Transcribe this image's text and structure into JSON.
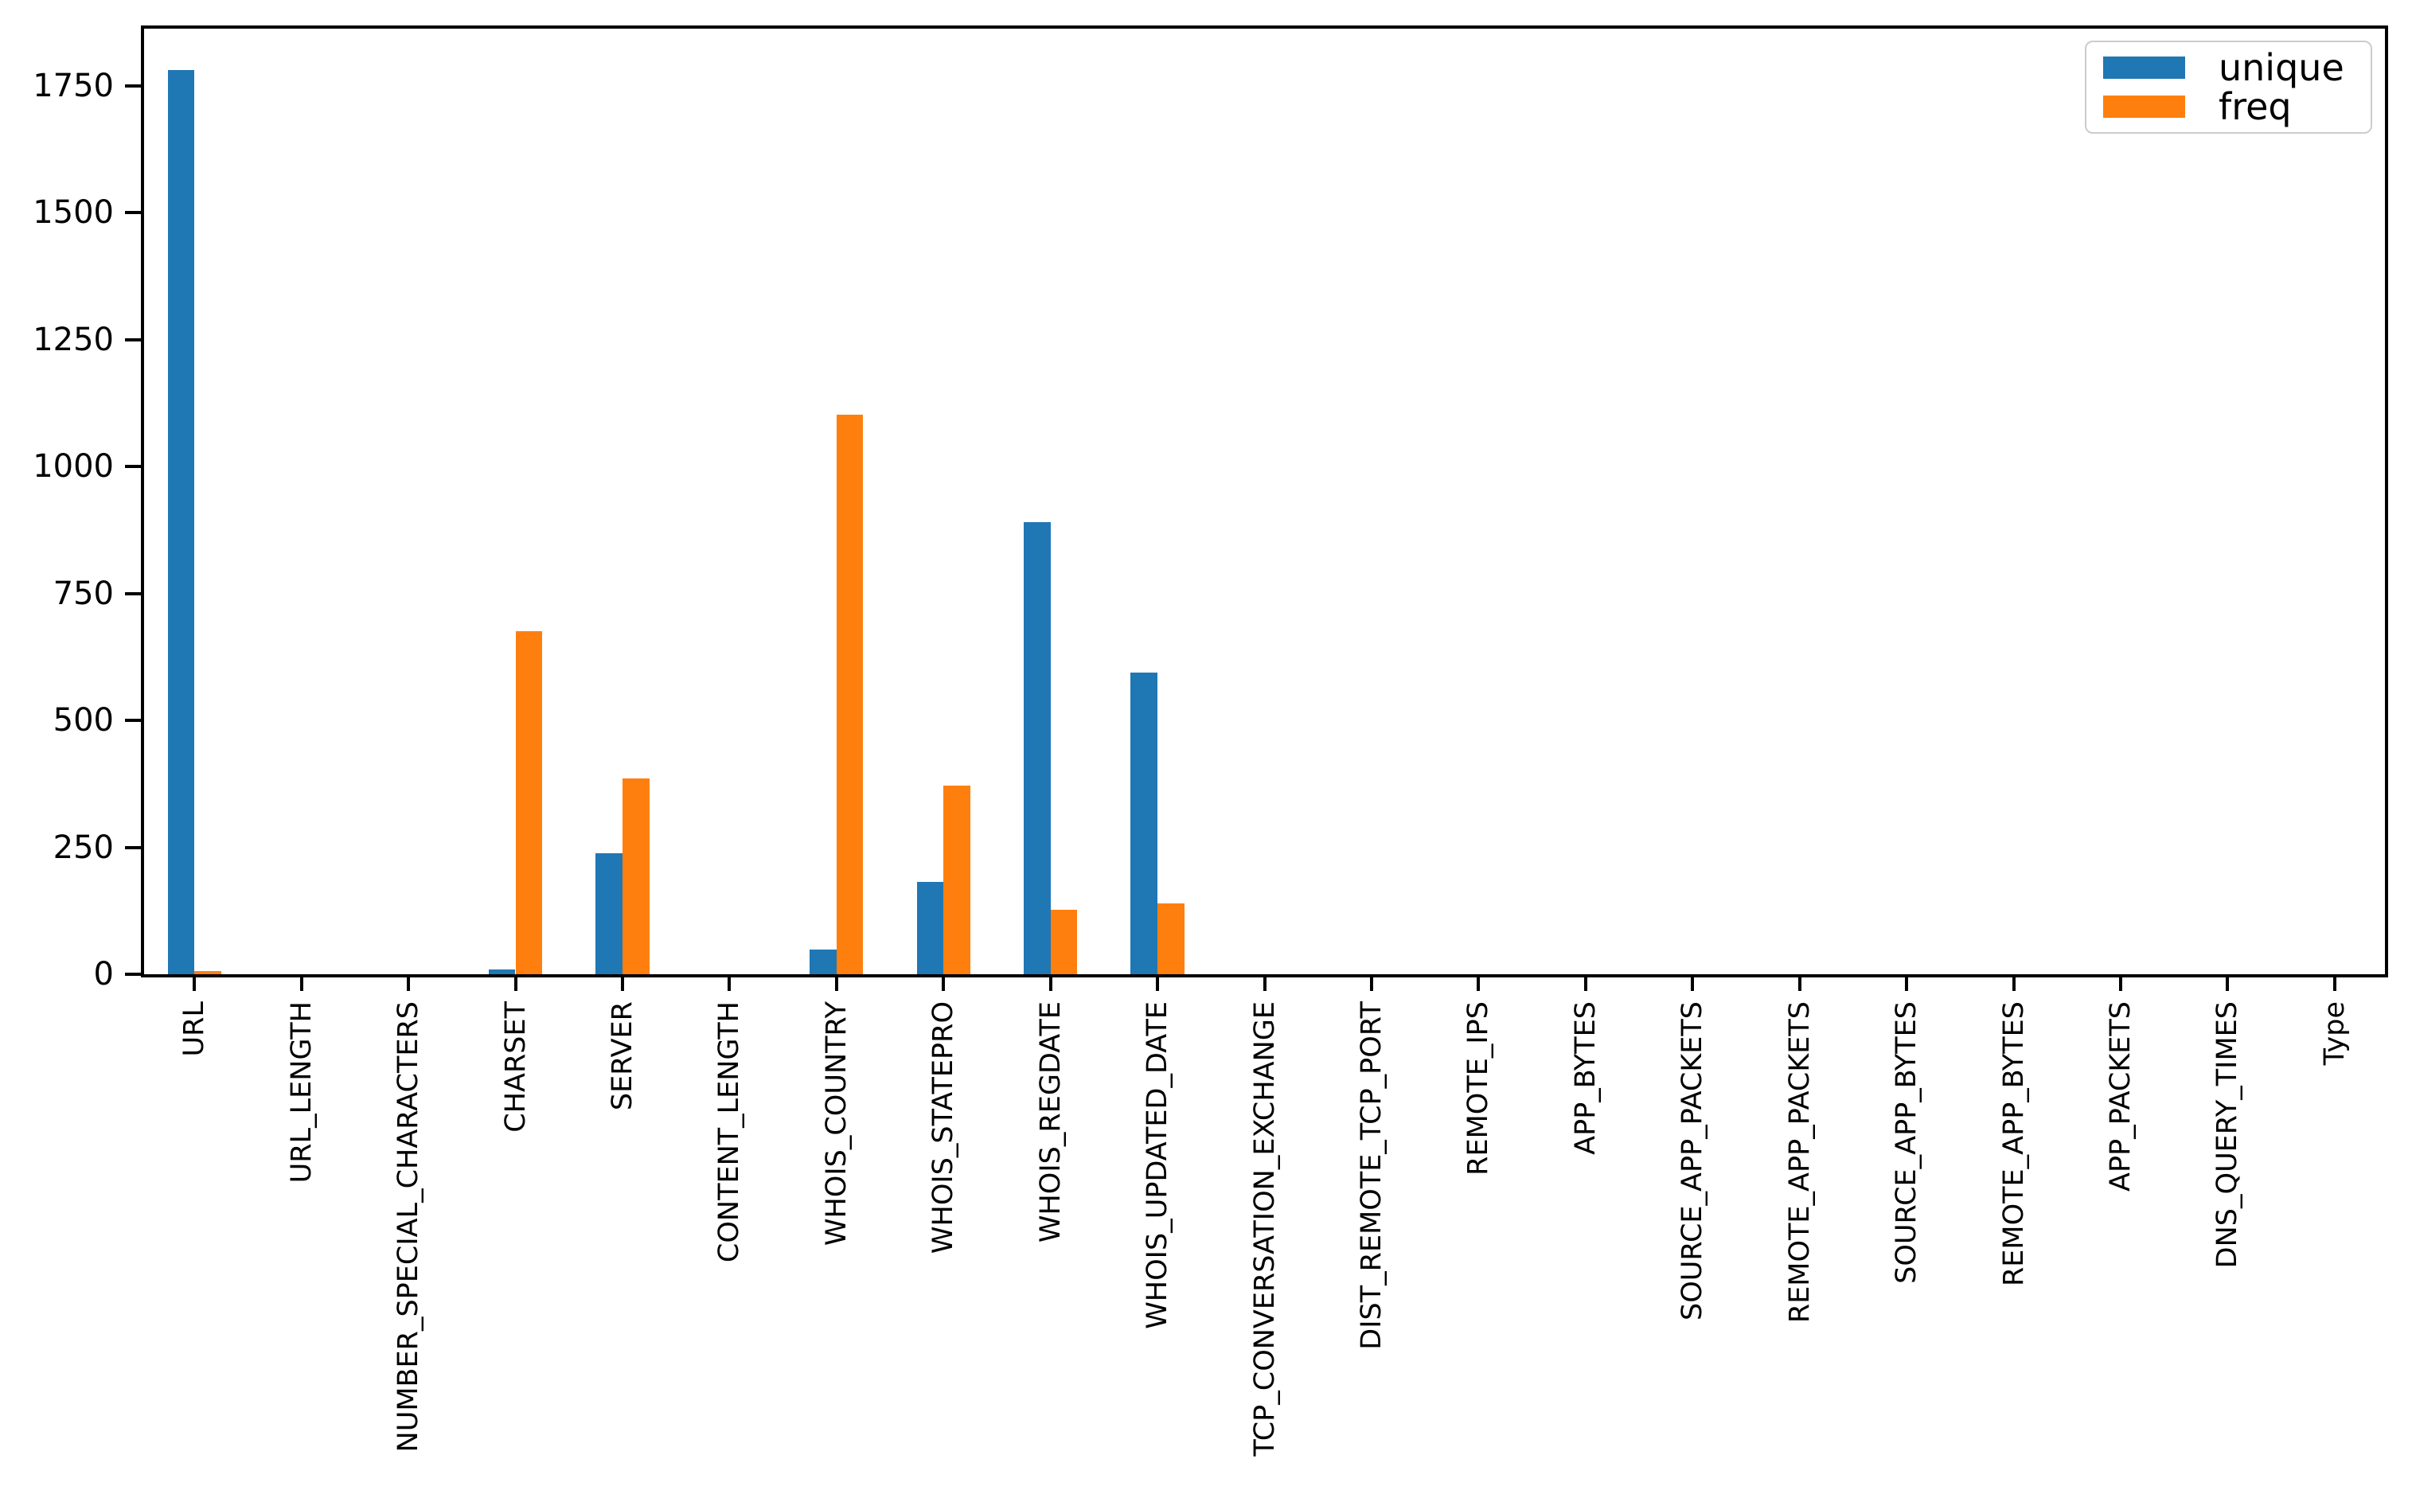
{
  "figure": {
    "background": "#ffffff",
    "text_color": "#000000"
  },
  "chart_data": {
    "type": "bar",
    "title": "",
    "xlabel": "",
    "ylabel": "",
    "categories": [
      "URL",
      "URL_LENGTH",
      "NUMBER_SPECIAL_CHARACTERS",
      "CHARSET",
      "SERVER",
      "CONTENT_LENGTH",
      "WHOIS_COUNTRY",
      "WHOIS_STATEPRO",
      "WHOIS_REGDATE",
      "WHOIS_UPDATED_DATE",
      "TCP_CONVERSATION_EXCHANGE",
      "DIST_REMOTE_TCP_PORT",
      "REMOTE_IPS",
      "APP_BYTES",
      "SOURCE_APP_PACKETS",
      "REMOTE_APP_PACKETS",
      "SOURCE_APP_BYTES",
      "REMOTE_APP_BYTES",
      "APP_PACKETS",
      "DNS_QUERY_TIMES",
      "Type"
    ],
    "series": [
      {
        "name": "unique",
        "color": "#1f77b4",
        "values": [
          1781,
          null,
          null,
          9,
          239,
          null,
          49,
          182,
          891,
          594,
          null,
          null,
          null,
          null,
          null,
          null,
          null,
          null,
          null,
          null,
          null
        ]
      },
      {
        "name": "freq",
        "color": "#ff7f0e",
        "values": [
          1,
          null,
          null,
          676,
          386,
          null,
          1103,
          372,
          127,
          139,
          null,
          null,
          null,
          null,
          null,
          null,
          null,
          null,
          null,
          null,
          null
        ]
      }
    ],
    "yticks": [
      0,
      250,
      500,
      750,
      1000,
      1250,
      1500,
      1750
    ],
    "ylim": [
      0,
      1869
    ],
    "grid": false,
    "legend_position": "upper right"
  }
}
